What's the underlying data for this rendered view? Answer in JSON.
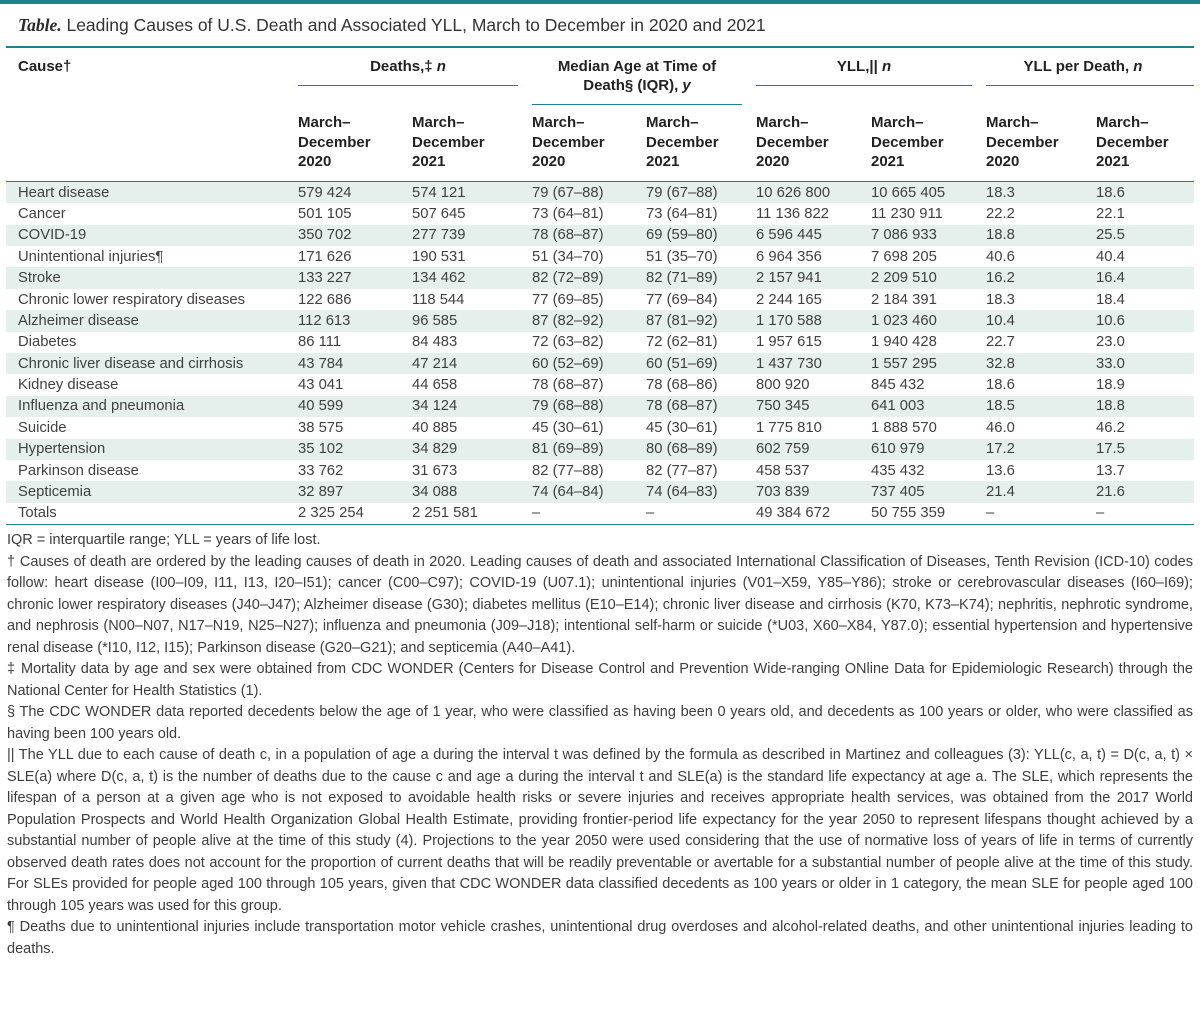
{
  "page": {
    "title_label": "Table.",
    "title_text": "Leading Causes of U.S. Death and Associated YLL, March to December in 2020 and 2021"
  },
  "colors": {
    "accent_teal": "#21808F",
    "row_shade": "#E5EFEB"
  },
  "table": {
    "col_groups": [
      {
        "text": "Cause†",
        "italic": ""
      },
      {
        "text": "Deaths,‡ ",
        "italic": "n"
      },
      {
        "text": "Median Age at Time of Death§ (IQR), ",
        "italic": "y"
      },
      {
        "text": "YLL,|| ",
        "italic": "n"
      },
      {
        "text": "YLL per Death, ",
        "italic": "n"
      }
    ],
    "sub_headers": [
      "March–\nDecember\n2020",
      "March–\nDecember\n2021",
      "March–\nDecember\n2020",
      "March–\nDecember\n2021",
      "March–\nDecember\n2020",
      "March–\nDecember\n2021",
      "March–\nDecember\n2020",
      "March–\nDecember\n2021"
    ],
    "rows": [
      {
        "cause": "Heart disease",
        "values": [
          "579 424",
          "574 121",
          "79 (67–88)",
          "79 (67–88)",
          "10 626 800",
          "10 665 405",
          "18.3",
          "18.6"
        ]
      },
      {
        "cause": "Cancer",
        "values": [
          "501 105",
          "507 645",
          "73 (64–81)",
          "73 (64–81)",
          "11 136 822",
          "11 230 911",
          "22.2",
          "22.1"
        ]
      },
      {
        "cause": "COVID-19",
        "values": [
          "350 702",
          "277 739",
          "78 (68–87)",
          "69 (59–80)",
          "6 596 445",
          "7 086 933",
          "18.8",
          "25.5"
        ]
      },
      {
        "cause": "Unintentional injuries¶",
        "values": [
          "171 626",
          "190 531",
          "51 (34–70)",
          "51 (35–70)",
          "6 964 356",
          "7 698 205",
          "40.6",
          "40.4"
        ]
      },
      {
        "cause": "Stroke",
        "values": [
          "133 227",
          "134 462",
          "82 (72–89)",
          "82 (71–89)",
          "2 157 941",
          "2 209 510",
          "16.2",
          "16.4"
        ]
      },
      {
        "cause": "Chronic lower respiratory diseases",
        "values": [
          "122 686",
          "118 544",
          "77 (69–85)",
          "77 (69–84)",
          "2 244 165",
          "2 184 391",
          "18.3",
          "18.4"
        ]
      },
      {
        "cause": "Alzheimer disease",
        "values": [
          "112 613",
          "96 585",
          "87 (82–92)",
          "87 (81–92)",
          "1 170 588",
          "1 023 460",
          "10.4",
          "10.6"
        ]
      },
      {
        "cause": "Diabetes",
        "values": [
          "86 111",
          "84 483",
          "72 (63–82)",
          "72 (62–81)",
          "1 957 615",
          "1 940 428",
          "22.7",
          "23.0"
        ]
      },
      {
        "cause": "Chronic liver disease and cirrhosis",
        "values": [
          "43 784",
          "47 214",
          "60 (52–69)",
          "60 (51–69)",
          "1 437 730",
          "1 557 295",
          "32.8",
          "33.0"
        ]
      },
      {
        "cause": "Kidney disease",
        "values": [
          "43 041",
          "44 658",
          "78 (68–87)",
          "78 (68–86)",
          "800 920",
          "845 432",
          "18.6",
          "18.9"
        ]
      },
      {
        "cause": "Influenza and pneumonia",
        "values": [
          "40 599",
          "34 124",
          "79 (68–88)",
          "78 (68–87)",
          "750 345",
          "641 003",
          "18.5",
          "18.8"
        ]
      },
      {
        "cause": "Suicide",
        "values": [
          "38 575",
          "40 885",
          "45 (30–61)",
          "45 (30–61)",
          "1 775 810",
          "1 888 570",
          "46.0",
          "46.2"
        ]
      },
      {
        "cause": "Hypertension",
        "values": [
          "35 102",
          "34 829",
          "81 (69–89)",
          "80 (68–89)",
          "602 759",
          "610 979",
          "17.2",
          "17.5"
        ]
      },
      {
        "cause": "Parkinson disease",
        "values": [
          "33 762",
          "31 673",
          "82 (77–88)",
          "82 (77–87)",
          "458 537",
          "435 432",
          "13.6",
          "13.7"
        ]
      },
      {
        "cause": "Septicemia",
        "values": [
          "32 897",
          "34 088",
          "74 (64–84)",
          "74 (64–83)",
          "703 839",
          "737 405",
          "21.4",
          "21.6"
        ]
      },
      {
        "cause": "Totals",
        "values": [
          "2 325 254",
          "2 251 581",
          "–",
          "–",
          "49 384 672",
          "50 755 359",
          "–",
          "–"
        ]
      }
    ]
  },
  "footnotes": [
    "IQR = interquartile range; YLL = years of life lost.",
    "† Causes of death are ordered by the leading causes of death in 2020. Leading causes of death and associated International Classification of Diseases, Tenth Revision (ICD-10) codes follow: heart disease (I00–I09, I11, I13, I20–I51); cancer (C00–C97); COVID-19 (U07.1); unintentional injuries (V01–X59, Y85–Y86); stroke or cerebrovascular diseases (I60–I69); chronic lower respiratory diseases (J40–J47); Alzheimer disease (G30); diabetes mellitus (E10–E14); chronic liver disease and cirrhosis (K70, K73–K74); nephritis, nephrotic syndrome, and nephrosis (N00–N07, N17–N19, N25–N27); influenza and pneumonia (J09–J18); intentional self-harm or suicide (*U03, X60–X84, Y87.0); essential hypertension and hypertensive renal disease (*I10, I12, I15); Parkinson disease (G20–G21); and septicemia (A40–A41).",
    "‡ Mortality data by age and sex were obtained from CDC WONDER (Centers for Disease Control and Prevention Wide-ranging ONline Data for Epidemiologic Research) through the National Center for Health Statistics (1).",
    "§ The CDC WONDER data reported decedents below the age of 1 year, who were classified as having been 0 years old, and decedents as 100 years or older, who were classified as having been 100 years old.",
    "|| The YLL due to each cause of death c, in a population of age a during the interval t was defined by the formula as described in Martinez and colleagues (3): YLL(c, a, t) = D(c, a, t) × SLE(a) where D(c, a, t) is the number of deaths due to the cause c and age a during the interval t and SLE(a) is the standard life expectancy at age a. The SLE, which represents the lifespan of a person at a given age who is not exposed to avoidable health risks or severe injuries and receives appropriate health services, was obtained from the 2017 World Population Prospects and World Health Organization Global Health Estimate, providing frontier-period life expectancy for the year 2050 to represent lifespans thought achieved by a substantial number of people alive at the time of this study (4). Projections to the year 2050 were used considering that the use of normative loss of years of life in terms of currently observed death rates does not account for the proportion of current deaths that will be readily preventable or avertable for a substantial number of people alive at the time of this study. For SLEs provided for people aged 100 through 105 years, given that CDC WONDER data classified decedents as 100 years or older in 1 category, the mean SLE for people aged 100 through 105 years was used for this group.",
    "¶ Deaths due to unintentional injuries include transportation motor vehicle crashes, unintentional drug overdoses and alcohol-related deaths, and other unintentional injuries leading to deaths."
  ]
}
